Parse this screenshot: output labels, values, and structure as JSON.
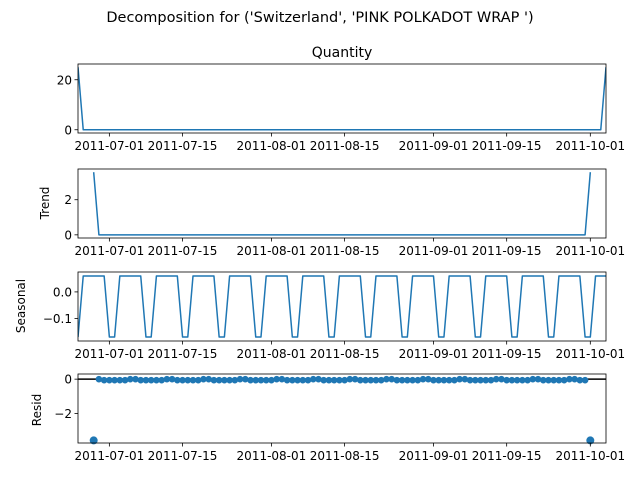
{
  "suptitle": "Decomposition for ('Switzerland', 'PINK POLKADOT WRAP ')",
  "colors": {
    "line": "#1f77b4",
    "marker": "#1f77b4",
    "zero_line": "#000000",
    "axis": "#000000",
    "background": "#ffffff"
  },
  "x_tick_labels": [
    "2011-07-01",
    "2011-07-15",
    "2011-08-01",
    "2011-08-15",
    "2011-09-01",
    "2011-09-15",
    "2011-10-01"
  ],
  "chart_data": [
    {
      "type": "line",
      "name": "observed",
      "title": "Quantity",
      "ylabel": "",
      "x_range": [
        "2011-06-25",
        "2011-10-04"
      ],
      "ylim": [
        -1.3,
        26.3
      ],
      "y_ticks": [
        0,
        20
      ],
      "y_tick_labels": [
        "0",
        "20"
      ],
      "x": [
        "2011-06-25",
        "2011-06-26",
        "2011-10-03",
        "2011-10-04"
      ],
      "values": [
        25,
        0,
        0,
        25
      ]
    },
    {
      "type": "line",
      "name": "trend",
      "title": "",
      "ylabel": "Trend",
      "x_range": [
        "2011-06-25",
        "2011-10-04"
      ],
      "ylim": [
        -0.18,
        3.75
      ],
      "y_ticks": [
        0,
        2
      ],
      "y_tick_labels": [
        "0",
        "2"
      ],
      "x": [
        "2011-06-28",
        "2011-06-29",
        "2011-09-30",
        "2011-10-01"
      ],
      "values": [
        3.57,
        0,
        0,
        3.57
      ]
    },
    {
      "type": "line",
      "name": "seasonal",
      "title": "",
      "ylabel": "Seasonal",
      "x_range": [
        "2011-06-25",
        "2011-10-04"
      ],
      "ylim": [
        -0.185,
        0.075
      ],
      "y_ticks": [
        0.0,
        -0.1
      ],
      "y_tick_labels": [
        "0.0",
        "−0.1"
      ],
      "pattern": [
        -0.17,
        0.06,
        0.06,
        0.06,
        0.06,
        0.06,
        -0.17
      ],
      "x_start": "2011-06-25",
      "x_end": "2011-10-04"
    },
    {
      "type": "scatter",
      "name": "resid",
      "title": "",
      "ylabel": "Resid",
      "x_range": [
        "2011-06-25",
        "2011-10-04"
      ],
      "ylim": [
        -3.72,
        0.3
      ],
      "y_ticks": [
        0,
        -2
      ],
      "y_tick_labels": [
        "0",
        "−2"
      ],
      "zero_line": true,
      "outliers": [
        {
          "x": "2011-06-28",
          "value": -3.57
        },
        {
          "x": "2011-10-01",
          "value": -3.57
        }
      ],
      "baseline_value": 0,
      "baseline_pattern": [
        0,
        -0.06,
        -0.06,
        -0.06,
        -0.06,
        -0.06,
        0
      ],
      "x_start": "2011-06-29",
      "x_end": "2011-09-30"
    }
  ]
}
